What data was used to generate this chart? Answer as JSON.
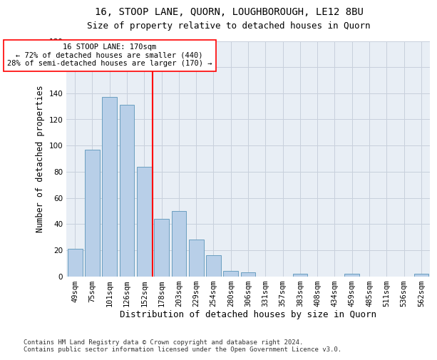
{
  "title": "16, STOOP LANE, QUORN, LOUGHBOROUGH, LE12 8BU",
  "subtitle": "Size of property relative to detached houses in Quorn",
  "xlabel": "Distribution of detached houses by size in Quorn",
  "ylabel": "Number of detached properties",
  "categories": [
    "49sqm",
    "75sqm",
    "101sqm",
    "126sqm",
    "152sqm",
    "178sqm",
    "203sqm",
    "229sqm",
    "254sqm",
    "280sqm",
    "306sqm",
    "331sqm",
    "357sqm",
    "383sqm",
    "408sqm",
    "434sqm",
    "459sqm",
    "485sqm",
    "511sqm",
    "536sqm",
    "562sqm"
  ],
  "values": [
    21,
    97,
    137,
    131,
    84,
    44,
    50,
    28,
    16,
    4,
    3,
    0,
    0,
    2,
    0,
    0,
    2,
    0,
    0,
    0,
    2
  ],
  "bar_color": "#b8cfe8",
  "bar_edge_color": "#6a9fc0",
  "grid_color": "#c8d0dc",
  "bg_color": "#e8eef5",
  "vline_x": 4.5,
  "vline_color": "red",
  "annotation_text": "16 STOOP LANE: 170sqm\n← 72% of detached houses are smaller (440)\n28% of semi-detached houses are larger (170) →",
  "annotation_box_color": "white",
  "annotation_edge_color": "red",
  "ylim": [
    0,
    180
  ],
  "yticks": [
    0,
    20,
    40,
    60,
    80,
    100,
    120,
    140,
    160,
    180
  ],
  "footnote": "Contains HM Land Registry data © Crown copyright and database right 2024.\nContains public sector information licensed under the Open Government Licence v3.0.",
  "title_fontsize": 10,
  "subtitle_fontsize": 9,
  "xlabel_fontsize": 9,
  "ylabel_fontsize": 8.5,
  "tick_fontsize": 7.5,
  "annot_fontsize": 7.5
}
